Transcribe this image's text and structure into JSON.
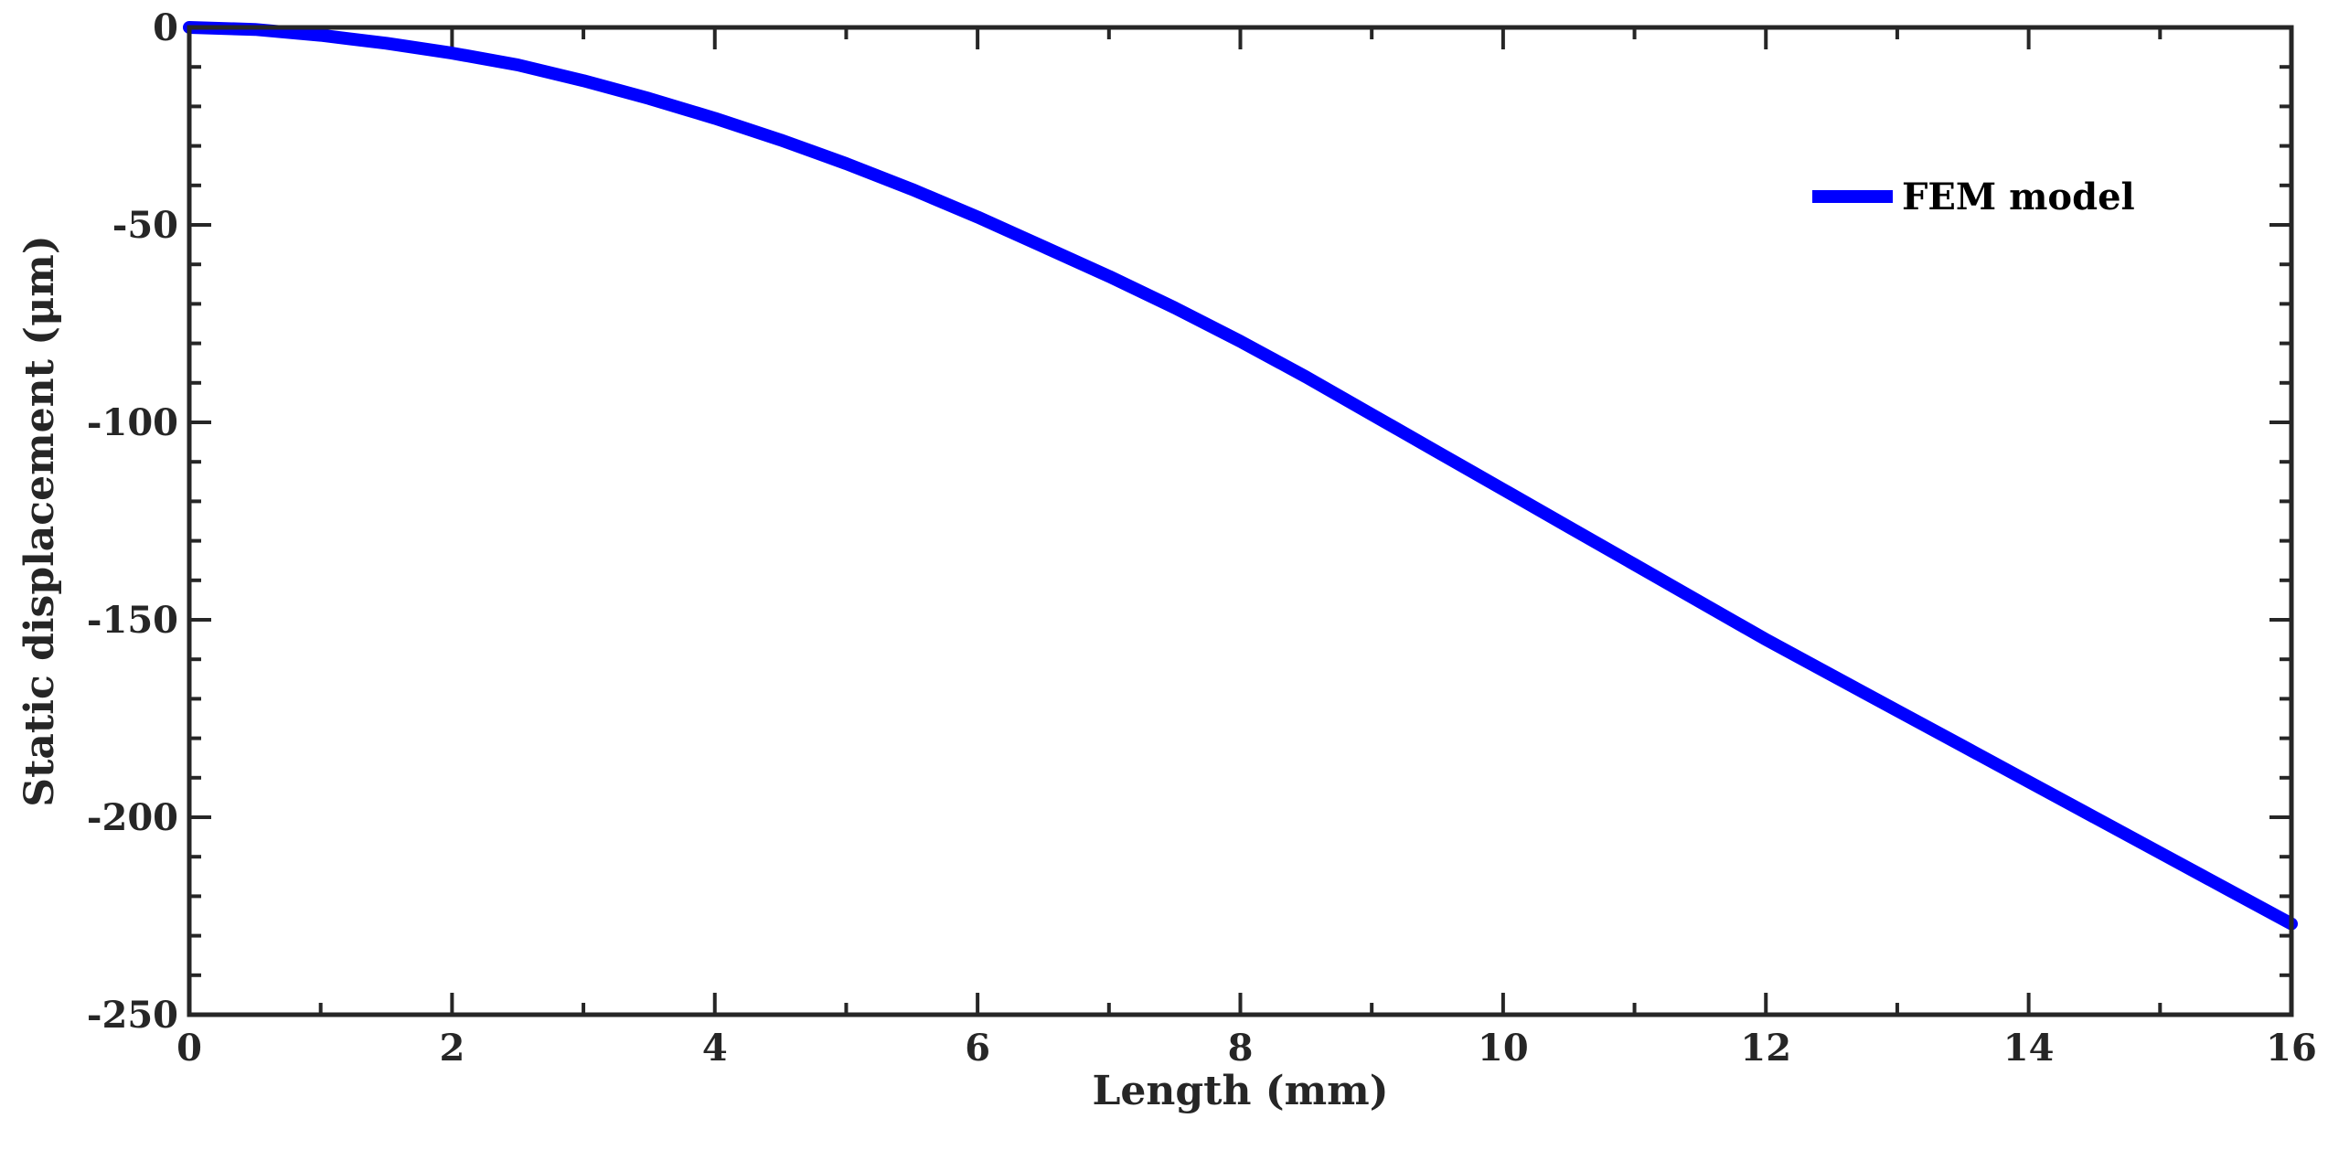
{
  "chart_data": {
    "type": "line",
    "title": "",
    "xlabel": "Length (mm)",
    "ylabel": "Static displacement (μm)",
    "xlim": [
      0,
      16
    ],
    "ylim": [
      -250,
      0
    ],
    "x_ticks": [
      "0",
      "2",
      "4",
      "6",
      "8",
      "10",
      "12",
      "14",
      "16"
    ],
    "y_ticks": [
      "0",
      "-50",
      "-100",
      "-150",
      "-200",
      "-250"
    ],
    "grid": false,
    "legend_position": "top-right",
    "series": [
      {
        "name": "FEM model",
        "color": "#0000ff",
        "x": [
          0,
          0.5,
          1,
          1.5,
          2,
          2.5,
          3,
          3.5,
          4,
          4.5,
          5,
          5.5,
          6,
          6.5,
          7,
          7.5,
          8,
          8.5,
          9,
          9.5,
          10,
          10.5,
          11,
          11.5,
          12,
          12.5,
          13,
          13.5,
          14,
          14.5,
          15,
          15.5,
          16
        ],
        "y": [
          0,
          -0.5,
          -2,
          -4,
          -6.5,
          -9.5,
          -13.5,
          -18,
          -23,
          -28.5,
          -34.5,
          -41,
          -48,
          -55.5,
          -63,
          -71,
          -79.5,
          -88.5,
          -98,
          -107.5,
          -117,
          -126.5,
          -136,
          -145.5,
          -155,
          -164,
          -173,
          -182,
          -191,
          -200,
          -209,
          -218,
          -227
        ]
      }
    ]
  }
}
